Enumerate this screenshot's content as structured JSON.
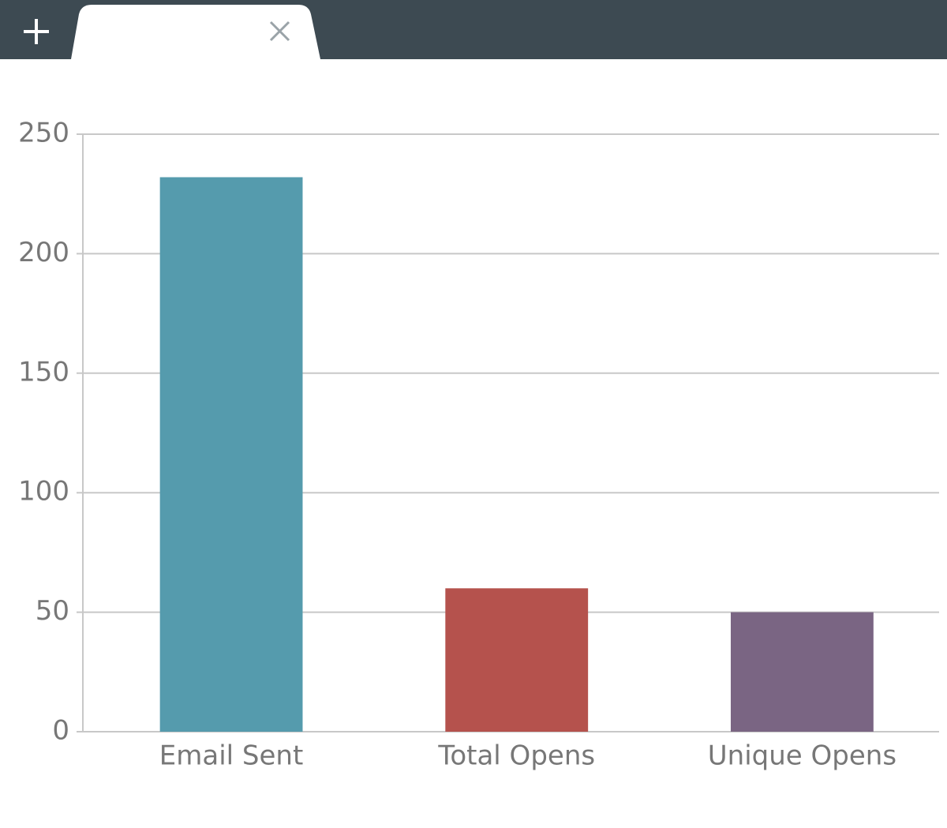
{
  "chart_data": {
    "type": "bar",
    "categories": [
      "Email Sent",
      "Total Opens",
      "Unique Opens"
    ],
    "values": [
      232,
      60,
      50
    ],
    "colors": [
      "#559bad",
      "#b5524d",
      "#7a6583"
    ],
    "ylim": [
      0,
      250
    ],
    "yticks": [
      0,
      50,
      100,
      150,
      200,
      250
    ],
    "grid": true
  }
}
